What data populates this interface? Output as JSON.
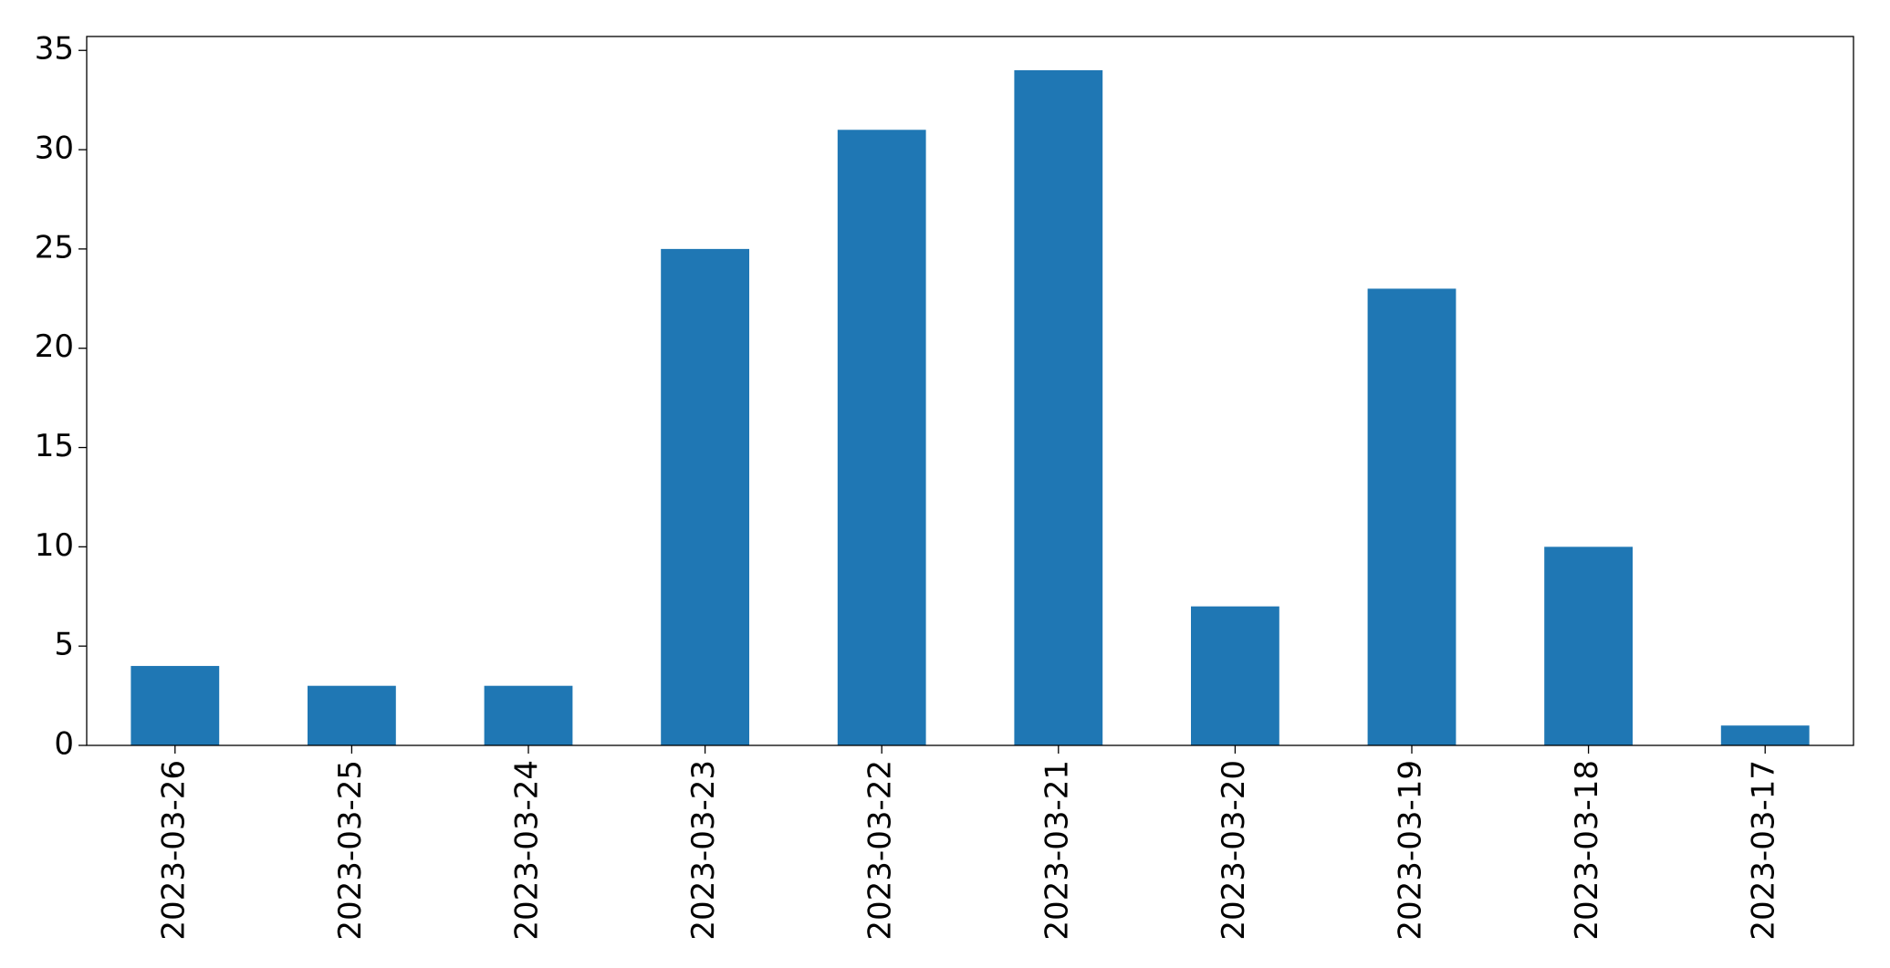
{
  "chart_data": {
    "type": "bar",
    "categories": [
      "2023-03-26",
      "2023-03-25",
      "2023-03-24",
      "2023-03-23",
      "2023-03-22",
      "2023-03-21",
      "2023-03-20",
      "2023-03-19",
      "2023-03-18",
      "2023-03-17"
    ],
    "values": [
      4,
      3,
      3,
      25,
      31,
      34,
      7,
      23,
      10,
      1
    ],
    "color": "#1f77b4",
    "ylim": [
      0,
      35.7
    ],
    "yticks": [
      0,
      5,
      10,
      15,
      20,
      25,
      30,
      35
    ],
    "grid": false
  }
}
